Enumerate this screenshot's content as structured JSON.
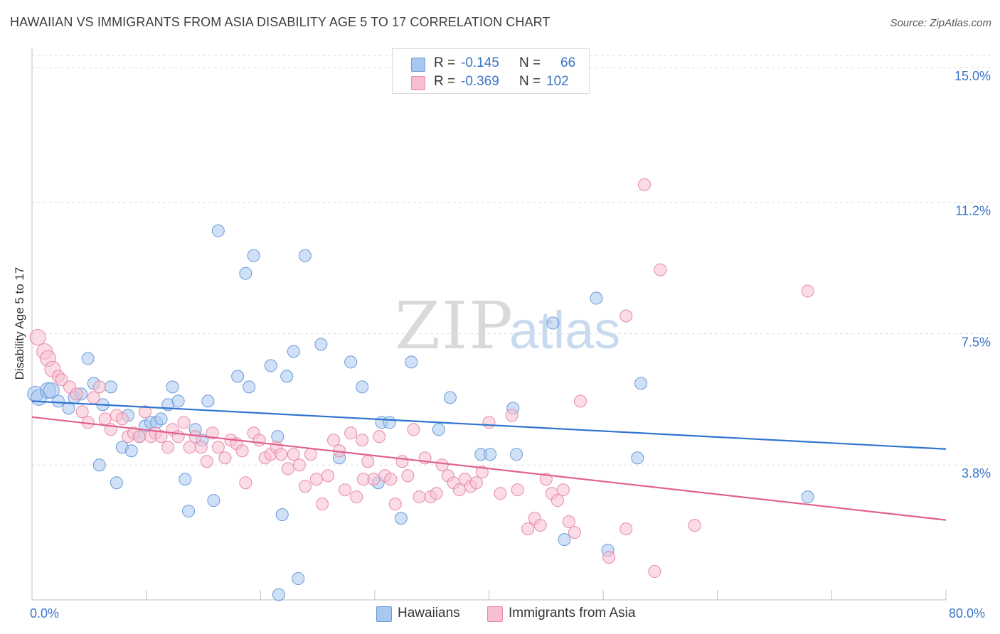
{
  "title": "HAWAIIAN VS IMMIGRANTS FROM ASIA DISABILITY AGE 5 TO 17 CORRELATION CHART",
  "source": "Source: ZipAtlas.com",
  "watermark": {
    "zip": "ZIP",
    "atlas": "atlas"
  },
  "legend_top": {
    "rows": [
      {
        "r_label": "R =",
        "r_value": "-0.145",
        "n_label": "N =",
        "n_value": "66",
        "color": "#a9c8f0",
        "border": "#6a9bd8"
      },
      {
        "r_label": "R =",
        "r_value": "-0.369",
        "n_label": "N =",
        "n_value": "102",
        "color": "#f7bfd0",
        "border": "#e58aa8"
      }
    ]
  },
  "legend_bottom": [
    {
      "label": "Hawaiians",
      "color": "#a9c8f0",
      "border": "#6a9bd8"
    },
    {
      "label": "Immigrants from Asia",
      "color": "#f7bfd0",
      "border": "#e58aa8"
    }
  ],
  "chart_data": {
    "type": "scatter",
    "title": "HAWAIIAN VS IMMIGRANTS FROM ASIA DISABILITY AGE 5 TO 17 CORRELATION CHART",
    "xlabel": "",
    "ylabel": "Disability Age 5 to 17",
    "xlim": [
      0,
      80
    ],
    "ylim": [
      0,
      15.7
    ],
    "x_tick_labels": [
      "0.0%",
      "80.0%"
    ],
    "y_ticks": [
      3.8,
      7.5,
      11.2,
      15.0
    ],
    "y_tick_labels": [
      "3.8%",
      "7.5%",
      "11.2%",
      "15.0%"
    ],
    "grid": true,
    "series": [
      {
        "name": "Hawaiians",
        "color": "#a9c8f0",
        "stroke": "#6a9bd8",
        "line_color": "#2f74d0",
        "trend": {
          "x": [
            0,
            80
          ],
          "y": [
            5.6,
            4.25
          ]
        },
        "points": [
          [
            0.3,
            5.8
          ],
          [
            0.6,
            5.7
          ],
          [
            1.4,
            5.9
          ],
          [
            1.7,
            5.9
          ],
          [
            2.3,
            5.6
          ],
          [
            3.2,
            5.4
          ],
          [
            3.7,
            5.7
          ],
          [
            4.3,
            5.8
          ],
          [
            4.9,
            6.8
          ],
          [
            5.4,
            6.1
          ],
          [
            5.9,
            3.8
          ],
          [
            6.2,
            5.5
          ],
          [
            6.9,
            6.0
          ],
          [
            7.4,
            3.3
          ],
          [
            7.9,
            4.3
          ],
          [
            8.4,
            5.2
          ],
          [
            8.7,
            4.2
          ],
          [
            9.4,
            4.6
          ],
          [
            9.9,
            4.9
          ],
          [
            10.4,
            5.0
          ],
          [
            10.9,
            5.0
          ],
          [
            11.3,
            5.1
          ],
          [
            11.9,
            5.5
          ],
          [
            12.3,
            6.0
          ],
          [
            12.8,
            5.6
          ],
          [
            13.4,
            3.4
          ],
          [
            13.7,
            2.5
          ],
          [
            14.3,
            4.8
          ],
          [
            14.9,
            4.5
          ],
          [
            15.4,
            5.6
          ],
          [
            15.9,
            2.8
          ],
          [
            16.3,
            10.4
          ],
          [
            18.7,
            9.2
          ],
          [
            18.0,
            6.3
          ],
          [
            19.4,
            9.7
          ],
          [
            19.0,
            6.0
          ],
          [
            20.9,
            6.6
          ],
          [
            21.5,
            4.6
          ],
          [
            21.9,
            2.4
          ],
          [
            22.3,
            6.3
          ],
          [
            22.9,
            7.0
          ],
          [
            23.9,
            9.7
          ],
          [
            25.3,
            7.2
          ],
          [
            26.9,
            4.0
          ],
          [
            27.9,
            6.7
          ],
          [
            28.9,
            6.0
          ],
          [
            30.3,
            3.3
          ],
          [
            30.6,
            5.0
          ],
          [
            31.3,
            5.0
          ],
          [
            32.3,
            2.3
          ],
          [
            33.2,
            6.7
          ],
          [
            35.6,
            4.8
          ],
          [
            36.6,
            5.7
          ],
          [
            39.3,
            4.1
          ],
          [
            40.1,
            4.1
          ],
          [
            42.4,
            4.1
          ],
          [
            42.1,
            5.4
          ],
          [
            45.6,
            7.8
          ],
          [
            46.6,
            1.7
          ],
          [
            49.4,
            8.5
          ],
          [
            50.4,
            1.4
          ],
          [
            53.3,
            6.1
          ],
          [
            53.0,
            4.0
          ],
          [
            67.9,
            2.9
          ],
          [
            21.6,
            0.15
          ],
          [
            23.3,
            0.6
          ]
        ]
      },
      {
        "name": "Immigrants from Asia",
        "color": "#f7bfd0",
        "stroke": "#e58aa8",
        "line_color": "#e0608e",
        "trend": {
          "x": [
            0,
            80
          ],
          "y": [
            5.15,
            2.25
          ]
        },
        "points": [
          [
            0.5,
            7.4
          ],
          [
            1.1,
            7.0
          ],
          [
            1.4,
            6.8
          ],
          [
            1.8,
            6.5
          ],
          [
            2.3,
            6.3
          ],
          [
            2.6,
            6.2
          ],
          [
            3.3,
            6.0
          ],
          [
            3.9,
            5.8
          ],
          [
            4.4,
            5.3
          ],
          [
            4.9,
            5.0
          ],
          [
            5.4,
            5.7
          ],
          [
            5.9,
            6.0
          ],
          [
            6.4,
            5.1
          ],
          [
            6.9,
            4.8
          ],
          [
            7.4,
            5.2
          ],
          [
            7.9,
            5.1
          ],
          [
            8.4,
            4.6
          ],
          [
            8.9,
            4.7
          ],
          [
            9.4,
            4.6
          ],
          [
            9.9,
            5.3
          ],
          [
            10.4,
            4.6
          ],
          [
            10.8,
            4.7
          ],
          [
            11.3,
            4.6
          ],
          [
            11.9,
            4.3
          ],
          [
            12.3,
            4.8
          ],
          [
            12.8,
            4.6
          ],
          [
            13.3,
            5.0
          ],
          [
            13.8,
            4.3
          ],
          [
            14.3,
            4.6
          ],
          [
            14.8,
            4.3
          ],
          [
            15.3,
            3.9
          ],
          [
            15.8,
            4.7
          ],
          [
            16.3,
            4.3
          ],
          [
            16.9,
            4.0
          ],
          [
            17.4,
            4.5
          ],
          [
            17.9,
            4.4
          ],
          [
            18.4,
            4.2
          ],
          [
            18.7,
            3.3
          ],
          [
            19.4,
            4.7
          ],
          [
            19.9,
            4.5
          ],
          [
            20.4,
            4.0
          ],
          [
            20.9,
            4.1
          ],
          [
            21.4,
            4.3
          ],
          [
            21.8,
            4.1
          ],
          [
            22.4,
            3.7
          ],
          [
            22.9,
            4.1
          ],
          [
            23.4,
            3.8
          ],
          [
            23.9,
            3.2
          ],
          [
            24.4,
            4.1
          ],
          [
            24.9,
            3.4
          ],
          [
            25.4,
            2.7
          ],
          [
            25.9,
            3.5
          ],
          [
            26.4,
            4.5
          ],
          [
            26.9,
            4.2
          ],
          [
            27.4,
            3.1
          ],
          [
            27.9,
            4.7
          ],
          [
            28.4,
            2.9
          ],
          [
            28.9,
            4.5
          ],
          [
            29.4,
            3.9
          ],
          [
            29.9,
            3.4
          ],
          [
            30.4,
            4.6
          ],
          [
            30.9,
            3.5
          ],
          [
            31.4,
            3.4
          ],
          [
            31.8,
            2.7
          ],
          [
            32.4,
            3.9
          ],
          [
            32.9,
            3.5
          ],
          [
            33.4,
            4.8
          ],
          [
            33.9,
            2.9
          ],
          [
            34.4,
            4.0
          ],
          [
            34.9,
            2.9
          ],
          [
            35.4,
            3.0
          ],
          [
            35.9,
            3.8
          ],
          [
            36.4,
            3.5
          ],
          [
            36.9,
            3.3
          ],
          [
            37.4,
            3.1
          ],
          [
            37.9,
            3.4
          ],
          [
            38.4,
            3.2
          ],
          [
            38.9,
            3.3
          ],
          [
            39.4,
            3.6
          ],
          [
            40.0,
            5.0
          ],
          [
            41.0,
            3.0
          ],
          [
            42.0,
            5.2
          ],
          [
            42.5,
            3.1
          ],
          [
            43.4,
            2.0
          ],
          [
            44.0,
            2.3
          ],
          [
            44.5,
            2.1
          ],
          [
            45.0,
            3.4
          ],
          [
            45.5,
            3.0
          ],
          [
            46.0,
            2.8
          ],
          [
            46.5,
            3.1
          ],
          [
            47.0,
            2.2
          ],
          [
            47.5,
            1.9
          ],
          [
            48.0,
            5.6
          ],
          [
            50.5,
            1.2
          ],
          [
            52.0,
            2.0
          ],
          [
            53.6,
            11.7
          ],
          [
            52.0,
            8.0
          ],
          [
            54.5,
            0.8
          ],
          [
            58.0,
            2.1
          ],
          [
            67.9,
            8.7
          ],
          [
            55.0,
            9.3
          ],
          [
            29.0,
            3.4
          ]
        ]
      }
    ]
  }
}
